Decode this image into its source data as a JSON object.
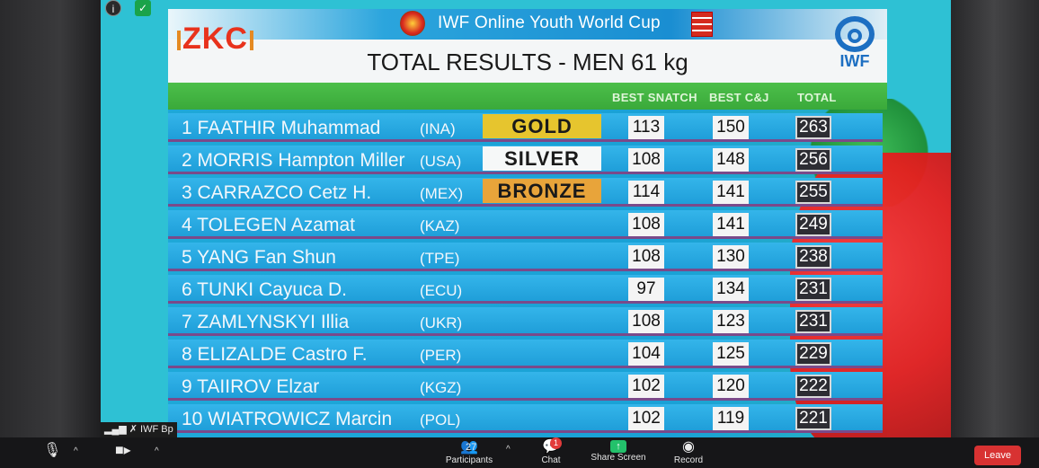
{
  "event": {
    "title": "IWF Online Youth World Cup",
    "brand_logo": "ZKC",
    "federation_logo": "IWF",
    "result_title": "TOTAL RESULTS - MEN 61 kg"
  },
  "columns": {
    "best_snatch": "BEST SNATCH",
    "best_cj": "BEST C&J",
    "total": "TOTAL"
  },
  "rows": [
    {
      "name": "1 FAATHIR Muhammad",
      "nation": "(INA)",
      "medal": "GOLD",
      "snatch": "113",
      "cj": "150",
      "total": "263"
    },
    {
      "name": "2 MORRIS Hampton Miller",
      "nation": "(USA)",
      "medal": "SILVER",
      "snatch": "108",
      "cj": "148",
      "total": "256"
    },
    {
      "name": "3 CARRAZCO Cetz H.",
      "nation": "(MEX)",
      "medal": "BRONZE",
      "snatch": "114",
      "cj": "141",
      "total": "255"
    },
    {
      "name": "4 TOLEGEN Azamat",
      "nation": "(KAZ)",
      "medal": "",
      "snatch": "108",
      "cj": "141",
      "total": "249"
    },
    {
      "name": "5 YANG Fan Shun",
      "nation": "(TPE)",
      "medal": "",
      "snatch": "108",
      "cj": "130",
      "total": "238"
    },
    {
      "name": "6 TUNKI Cayuca D.",
      "nation": "(ECU)",
      "medal": "",
      "snatch": "97",
      "cj": "134",
      "total": "231"
    },
    {
      "name": "7 ZAMLYNSKYI Illia",
      "nation": "(UKR)",
      "medal": "",
      "snatch": "108",
      "cj": "123",
      "total": "231"
    },
    {
      "name": "8 ELIZALDE Castro F.",
      "nation": "(PER)",
      "medal": "",
      "snatch": "104",
      "cj": "125",
      "total": "229"
    },
    {
      "name": "9 TAIIROV Elzar",
      "nation": "(KGZ)",
      "medal": "",
      "snatch": "102",
      "cj": "120",
      "total": "222"
    },
    {
      "name": "10 WIATROWICZ Marcin",
      "nation": "(POL)",
      "medal": "",
      "snatch": "102",
      "cj": "119",
      "total": "221"
    }
  ],
  "overlay": {
    "host_label": "IWF Bp",
    "info_icon": "info-icon",
    "shield_icon": "shield-icon"
  },
  "toolbar": {
    "participants_label": "Participants",
    "participants_count": "27",
    "chat_label": "Chat",
    "chat_badge": "1",
    "share_label": "Share Screen",
    "record_label": "Record",
    "leave_label": "Leave"
  },
  "colors": {
    "gold": "#e6c52e",
    "silver": "#f6f8f8",
    "bronze": "#e8a43a",
    "row_blue": "#1f9ed9",
    "header_green": "#3aa93a",
    "leave_red": "#d83232"
  }
}
